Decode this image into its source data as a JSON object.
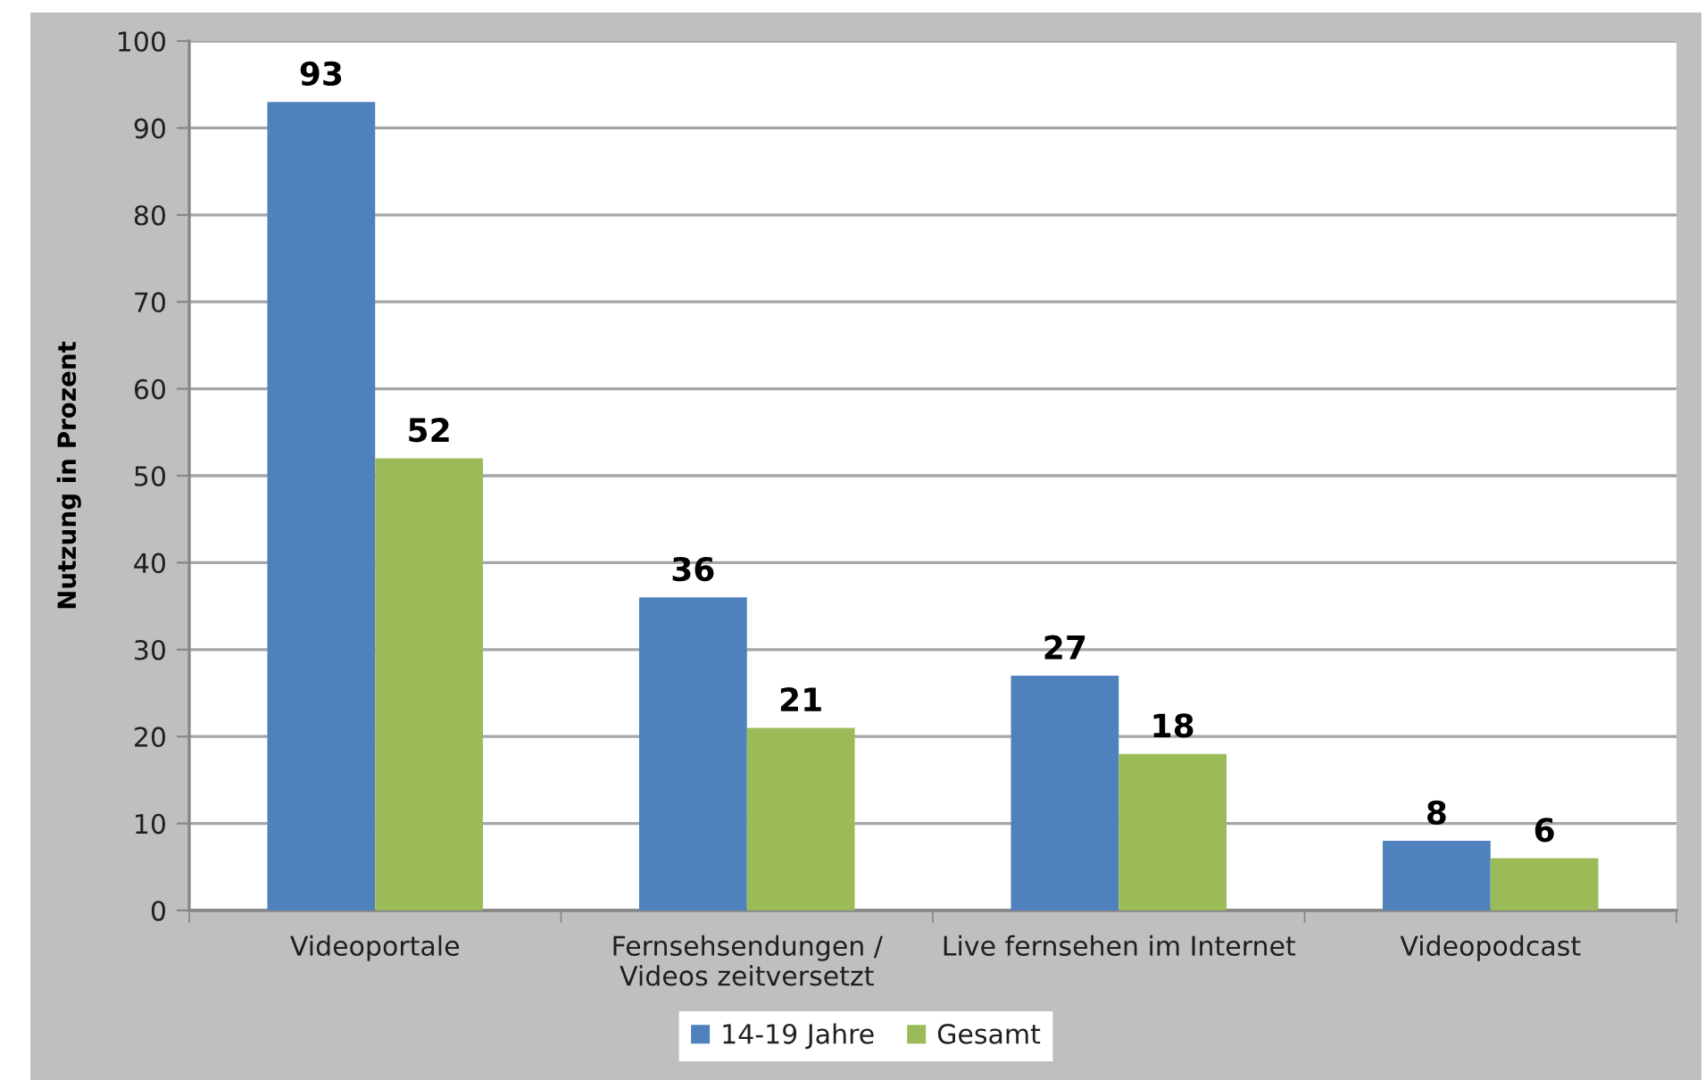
{
  "chart_data": {
    "type": "bar",
    "ylabel": "Nutzung in Prozent",
    "categories": [
      "Videoportale",
      "Fernsehsendungen /\nVideos zeitversetzt",
      "Live fernsehen im Internet",
      "Videopodcast"
    ],
    "series": [
      {
        "name": "14-19 Jahre",
        "color": "#4f81bd",
        "values": [
          93,
          36,
          27,
          8
        ]
      },
      {
        "name": "Gesamt",
        "color": "#9bbb59",
        "values": [
          52,
          21,
          18,
          6
        ]
      }
    ],
    "ylim": [
      0,
      100
    ],
    "yticks": [
      0,
      10,
      20,
      30,
      40,
      50,
      60,
      70,
      80,
      90,
      100
    ],
    "grid": "y",
    "legend": "bottom",
    "data_labels": true
  }
}
